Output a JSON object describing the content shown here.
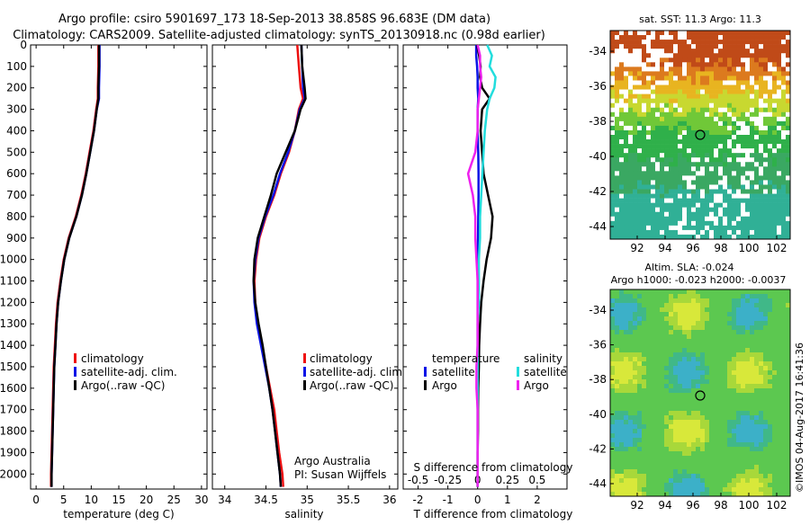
{
  "title": {
    "line1": "Argo profile: csiro 5901697_173 18-Sep-2013 38.858S 96.683E (DM data)",
    "line2": "Climatology: CARS2009. Satellite-adjusted climatology: synTS_20130918.nc (0.98d earlier)"
  },
  "depth_ticks": [
    "0",
    "100",
    "200",
    "300",
    "400",
    "500",
    "600",
    "700",
    "800",
    "900",
    "1000",
    "1100",
    "1200",
    "1300",
    "1400",
    "1500",
    "1600",
    "1700",
    "1800",
    "1900",
    "2000"
  ],
  "colors": {
    "climatology": "#ee1111",
    "satellite": "#0a14e6",
    "argo": "#000000",
    "sal_sat": "#22dddd",
    "sal_argo": "#ee22ee"
  },
  "legend_profile": {
    "climatology": "climatology",
    "satellite": "satellite-adj. clim.",
    "argo": "Argo(..raw -QC)"
  },
  "legend_diff": {
    "temperature": "temperature",
    "salinity": "salinity",
    "satellite": "satellite",
    "argo": "Argo"
  },
  "credits": {
    "line1": "Argo Australia",
    "line2": "PI: Susan Wijffels"
  },
  "maps": {
    "top_title": "sat. SST: 11.3 Argo: 11.3",
    "bottom_title1": "Altim. SLA: -0.024",
    "bottom_title2": "Argo h1000: -0.023 h2000: -0.0037",
    "lat_ticks": [
      "-34",
      "-36",
      "-38",
      "-40",
      "-42",
      "-44"
    ],
    "lon_ticks": [
      "92",
      "94",
      "96",
      "98",
      "100",
      "102"
    ]
  },
  "timestamp": "©IMOS 04-Aug-2017 16:41:36",
  "chart_data": [
    {
      "type": "line",
      "title": "",
      "xlabel": "temperature (deg C)",
      "ylabel": "",
      "xlim": [
        -1,
        31
      ],
      "ylim": [
        2070,
        0
      ],
      "xticks": [
        "0",
        "5",
        "10",
        "15",
        "20",
        "25",
        "30"
      ],
      "depth": [
        0,
        100,
        200,
        250,
        300,
        400,
        500,
        600,
        700,
        800,
        900,
        1000,
        1100,
        1200,
        1300,
        1400,
        1500,
        1600,
        1700,
        1800,
        1900,
        2000,
        2060
      ],
      "series": [
        {
          "name": "climatology",
          "values": [
            11.3,
            11.3,
            11.2,
            11.2,
            10.9,
            10.4,
            9.7,
            9.0,
            8.2,
            7.2,
            5.9,
            5.0,
            4.4,
            3.9,
            3.6,
            3.4,
            3.2,
            3.1,
            3.0,
            2.9,
            2.8,
            2.7,
            2.7
          ]
        },
        {
          "name": "satellite-adj. clim.",
          "values": [
            11.5,
            11.5,
            11.4,
            11.4,
            11.0,
            10.5,
            9.8,
            9.1,
            8.3,
            7.3,
            6.0,
            5.1,
            4.5,
            4.0,
            3.7,
            3.5,
            3.3,
            3.2,
            3.1,
            3.0,
            2.9,
            2.8,
            2.8
          ]
        },
        {
          "name": "Argo(..raw -QC)",
          "values": [
            11.4,
            11.4,
            11.3,
            11.3,
            11.0,
            10.5,
            9.8,
            9.1,
            8.3,
            7.3,
            6.0,
            5.1,
            4.5,
            4.0,
            3.7,
            3.5,
            3.3,
            3.2,
            3.1,
            3.0,
            2.9,
            2.8,
            2.8
          ]
        }
      ]
    },
    {
      "type": "line",
      "title": "",
      "xlabel": "salinity",
      "ylabel": "",
      "xlim": [
        33.85,
        36.1
      ],
      "ylim": [
        2070,
        0
      ],
      "xticks": [
        "34",
        "34.5",
        "35",
        "35.5",
        "36"
      ],
      "depth": [
        0,
        100,
        200,
        250,
        300,
        400,
        500,
        600,
        700,
        800,
        900,
        1000,
        1100,
        1200,
        1300,
        1400,
        1500,
        1600,
        1700,
        1800,
        1900,
        2000,
        2060
      ],
      "series": [
        {
          "name": "climatology",
          "values": [
            34.88,
            34.9,
            34.92,
            34.95,
            34.9,
            34.85,
            34.78,
            34.68,
            34.6,
            34.5,
            34.42,
            34.38,
            34.36,
            34.37,
            34.4,
            34.45,
            34.5,
            34.55,
            34.6,
            34.63,
            34.66,
            34.7,
            34.71
          ]
        },
        {
          "name": "satellite-adj. clim.",
          "values": [
            34.93,
            34.94,
            34.95,
            34.97,
            34.91,
            34.85,
            34.77,
            34.67,
            34.59,
            34.49,
            34.41,
            34.37,
            34.35,
            34.36,
            34.39,
            34.44,
            34.49,
            34.54,
            34.58,
            34.61,
            34.64,
            34.67,
            34.68
          ]
        },
        {
          "name": "Argo(..raw -QC)",
          "values": [
            34.93,
            34.94,
            34.97,
            34.98,
            34.92,
            34.85,
            34.74,
            34.63,
            34.56,
            34.48,
            34.4,
            34.36,
            34.35,
            34.37,
            34.41,
            34.46,
            34.5,
            34.54,
            34.58,
            34.61,
            34.64,
            34.67,
            34.68
          ]
        }
      ]
    },
    {
      "type": "line",
      "title": "",
      "xlabel": "T difference from climatology",
      "xlabel_top": "S difference from climatology",
      "ylabel": "",
      "xlim": [
        -2.5,
        3.0
      ],
      "ylim": [
        2070,
        0
      ],
      "xticks": [
        "-2",
        "-1",
        "0",
        "1",
        "2"
      ],
      "xticks_top": [
        "-0.5",
        "-0.25",
        "0",
        "0.25",
        "0.5"
      ],
      "depth": [
        0,
        50,
        100,
        150,
        200,
        250,
        300,
        400,
        500,
        600,
        700,
        800,
        900,
        1000,
        1100,
        1200,
        1300,
        1400,
        1500,
        1600,
        1700,
        1800,
        1900,
        2000,
        2060
      ],
      "series": [
        {
          "name": "temperature satellite",
          "values": [
            -0.05,
            -0.05,
            -0.02,
            0.0,
            0.0,
            0.02,
            0.0,
            0.0,
            0.02,
            0.03,
            0.03,
            0.02,
            0.01,
            0.0,
            0.0,
            0.0,
            0.0,
            0.0,
            0.0,
            0.0,
            0.0,
            0.0,
            0.0,
            0.0,
            0.0
          ]
        },
        {
          "name": "temperature Argo",
          "values": [
            -0.02,
            0.05,
            0.1,
            0.08,
            0.15,
            0.4,
            0.15,
            0.1,
            0.15,
            0.2,
            0.35,
            0.5,
            0.45,
            0.3,
            0.2,
            0.12,
            0.08,
            0.05,
            0.04,
            0.02,
            0.01,
            0.01,
            0.0,
            0.0,
            0.0
          ]
        },
        {
          "name": "salinity satellite",
          "values": [
            0.08,
            0.12,
            0.1,
            0.15,
            0.14,
            0.1,
            0.08,
            0.06,
            0.05,
            0.04,
            0.03,
            0.02,
            0.02,
            0.01,
            0.01,
            0.01,
            0.0,
            0.0,
            0.0,
            0.0,
            0.0,
            0.0,
            0.0,
            0.0,
            0.0
          ]
        },
        {
          "name": "salinity Argo",
          "values": [
            0.0,
            0.02,
            0.02,
            0.03,
            0.02,
            0.01,
            0.0,
            0.0,
            -0.02,
            -0.08,
            -0.04,
            -0.02,
            -0.02,
            -0.01,
            0.0,
            0.0,
            0.0,
            0.0,
            -0.01,
            -0.01,
            0.0,
            0.0,
            0.0,
            0.0,
            0.0
          ]
        }
      ]
    }
  ]
}
